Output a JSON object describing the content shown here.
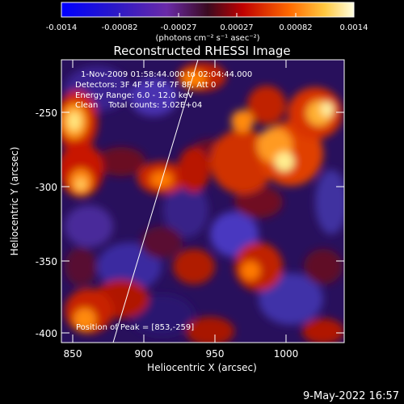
{
  "colorbar": {
    "ticks": [
      "-0.0014",
      "-0.00082",
      "-0.00027",
      "0.00027",
      "0.00082",
      "0.0014"
    ],
    "unit_label": "(photons cm⁻² s⁻¹ asec⁻²)"
  },
  "plot": {
    "title": "Reconstructed RHESSI Image",
    "xlabel": "Heliocentric X (arcsec)",
    "ylabel": "Heliocentric Y (arcsec)",
    "x_ticks": [
      "850",
      "900",
      "950",
      "1000"
    ],
    "y_ticks": [
      "-250",
      "-300",
      "-350",
      "-400"
    ]
  },
  "annotations": {
    "time_range": "1-Nov-2009 01:58:44.000 to 02:04:44.000",
    "detectors": "Detectors: 3F 4F 5F 6F 7F 8F, Att 0",
    "energy_range": "Energy Range: 6.0 - 12.0 keV",
    "clean_counts": "Clean    Total counts: 5.02E+04",
    "peak_position": "Position of Peak = [853,-259]"
  },
  "footer": {
    "date": "9-May-2022 16:57"
  },
  "colors": {
    "background": "#000000",
    "text": "#ffffff",
    "map_low": "#1a0a5a",
    "map_high": "#ffffd0"
  }
}
